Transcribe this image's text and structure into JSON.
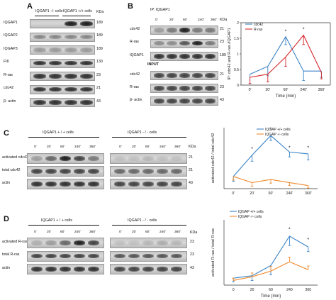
{
  "panelA": {
    "letter": "A",
    "group_headers": [
      "IQGAP1 -/- cells",
      "IQGAP1 +/+ cells"
    ],
    "kda_header": "KDa",
    "rows": [
      {
        "label": "IQGAP1",
        "kda": "189"
      },
      {
        "label": "IQGAP2",
        "kda": "189"
      },
      {
        "label": "IQGAP3",
        "kda": "189"
      },
      {
        "label": "FIII",
        "kda": "130"
      },
      {
        "label": "R-ras",
        "kda": "23"
      },
      {
        "label": "cdc42",
        "kda": "21"
      },
      {
        "label": "β- actin",
        "kda": "43"
      }
    ]
  },
  "panelB": {
    "letter": "B",
    "ip_label": "IP: IQGAP1",
    "lanes": [
      "0'",
      "20'",
      "60'",
      "240'",
      "360'"
    ],
    "kda_header": "KDa",
    "ip_rows": [
      {
        "label": "cdc42",
        "kda": "21"
      },
      {
        "label": "R-ras",
        "kda": "23"
      },
      {
        "label": "IQGAP1",
        "kda": "189"
      }
    ],
    "input_label": "INPUT",
    "input_rows": [
      {
        "label": "cdc42",
        "kda": "21"
      },
      {
        "label": "R-ras",
        "kda": "23"
      },
      {
        "label": "β- actin",
        "kda": "43"
      }
    ]
  },
  "panelC": {
    "letter": "C",
    "group_headers": [
      "IQGAP1 + / + cells",
      "IQGAP1 - / - cells"
    ],
    "lanes": [
      "0'",
      "20'",
      "60'",
      "240'",
      "360'"
    ],
    "kda_header": "KDa",
    "rows": [
      {
        "label": "activated cdc42",
        "kda": "21"
      },
      {
        "label": "total cdc42",
        "kda": "21"
      },
      {
        "label": "actin",
        "kda": "43"
      }
    ]
  },
  "panelD": {
    "letter": "D",
    "group_headers": [
      "IQGAP1 + / + cells",
      "IQGAP1 - / - cells"
    ],
    "lanes": [
      "0'",
      "20'",
      "60'",
      "240'",
      "360'"
    ],
    "kda_header": "KDa",
    "rows": [
      {
        "label": "activated R-ras",
        "kda": "23"
      },
      {
        "label": "total R-ras",
        "kda": "23"
      },
      {
        "label": "actin",
        "kda": "43"
      }
    ]
  },
  "colors": {
    "blue": "#3b83c6",
    "red": "#d6262a",
    "orange": "#f08a2e"
  },
  "chart_data": [
    {
      "type": "line",
      "x": [
        "0'",
        "20'",
        "60'",
        "240'",
        "360'"
      ],
      "xlabel": "Time (min)",
      "ylabel": "IP: cdc42 and R-ras /IQGAP1",
      "ylim": [
        0,
        2
      ],
      "yticks": [
        "0",
        "0.5",
        "1",
        "1.5",
        "2"
      ],
      "legend": "top-left",
      "series": [
        {
          "name": "cdc42",
          "values": [
            0.35,
            0.6,
            1.55,
            0.45,
            0.45
          ],
          "errors": [
            0.3,
            0.3,
            0.25,
            0.3,
            0.2
          ]
        },
        {
          "name": "R-ras",
          "values": [
            0.25,
            0.35,
            0.9,
            1.6,
            0.4
          ],
          "errors": [
            0.2,
            0.25,
            0.3,
            0.3,
            0.2
          ]
        }
      ],
      "annotations": [
        "*",
        "*"
      ]
    },
    {
      "type": "line",
      "x": [
        "0'",
        "20'",
        "60'",
        "240'",
        "360'"
      ],
      "xlabel": "",
      "ylabel": "activated cdc42 / total cdc42",
      "ylim": [
        0,
        1
      ],
      "legend": "top-right",
      "series": [
        {
          "name": "IQGAP +/+ cells",
          "values": [
            0.2,
            0.55,
            0.87,
            0.6,
            0.57
          ],
          "errors": [
            0.08,
            0.1,
            0.08,
            0.08,
            0.1
          ]
        },
        {
          "name": "IQGAP -/- cells",
          "values": [
            0.2,
            0.1,
            0.15,
            0.1,
            0.05
          ],
          "errors": [
            0.06,
            0.06,
            0.06,
            0.05,
            0.04
          ]
        }
      ],
      "annotations": [
        "*",
        "*",
        "*",
        "*"
      ]
    },
    {
      "type": "line",
      "x": [
        "0",
        "20",
        "60",
        "240",
        "360"
      ],
      "xlabel": "Time (min)",
      "ylabel": "activated R-ras / total R-ras",
      "ylim": [
        0,
        1.4
      ],
      "legend": "top-left",
      "series": [
        {
          "name": "IQGAP +/+ cells",
          "values": [
            0.15,
            0.2,
            0.42,
            1.05,
            0.82
          ],
          "errors": [
            0.08,
            0.1,
            0.2,
            0.2,
            0.1
          ]
        },
        {
          "name": "IQGAP -/- cells",
          "values": [
            0.1,
            0.18,
            0.3,
            0.5,
            0.33
          ],
          "errors": [
            0.05,
            0.08,
            0.1,
            0.1,
            0.08
          ]
        }
      ],
      "annotations": [
        "*",
        "*"
      ]
    }
  ]
}
